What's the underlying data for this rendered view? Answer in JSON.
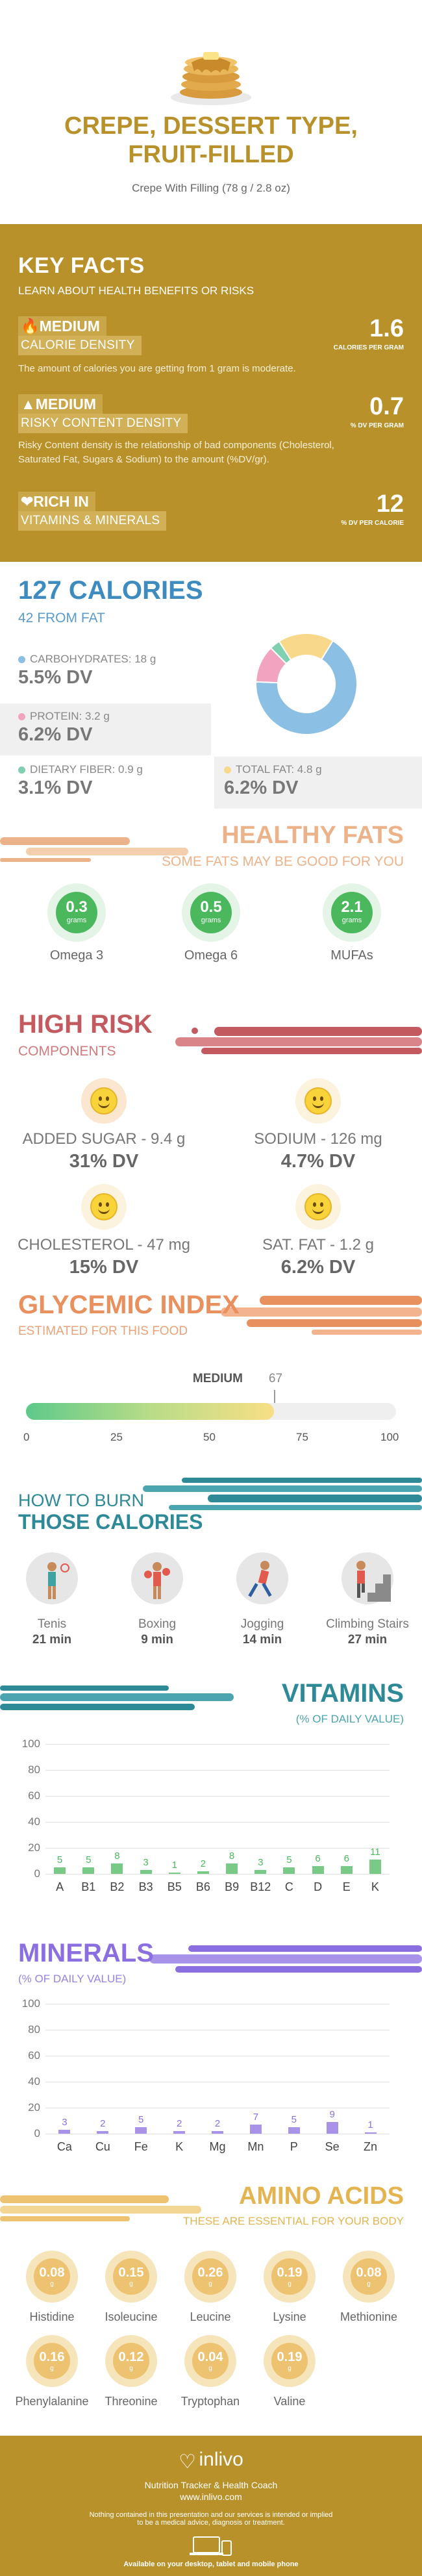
{
  "header": {
    "title_line1": "CREPE, DESSERT TYPE,",
    "title_line2": "FRUIT-FILLED",
    "subtitle": "Crepe With Filling (78 g / 2.8 oz)"
  },
  "key_facts": {
    "title": "KEY FACTS",
    "subtitle": "LEARN ABOUT HEALTH BENEFITS OR RISKS",
    "items": [
      {
        "level": "MEDIUM",
        "label": "CALORIE DENSITY",
        "value": "1.6",
        "unit": "CALORIES PER GRAM",
        "description": "The amount of calories you are getting from 1 gram is moderate.",
        "icon": "flame-icon"
      },
      {
        "level": "MEDIUM",
        "label": "RISKY CONTENT DENSITY",
        "value": "0.7",
        "unit": "% DV PER GRAM",
        "description": "Risky Content density is the relationship of bad components (Cholesterol, Saturated Fat, Sugars & Sodium) to the amount (%DV/gr).",
        "icon": "warning-icon"
      },
      {
        "level": "RICH  IN",
        "label": "VITAMINS & MINERALS",
        "value": "12",
        "unit": "% DV PER CALORIE",
        "icon": "heart-icon"
      }
    ]
  },
  "calories": {
    "title": "127 CALORIES",
    "subtitle": "42 FROM FAT",
    "macros": [
      {
        "name": "CARBOHYDRATES: 18 g",
        "dv": "5.5% DV",
        "color": "#8bbfe3"
      },
      {
        "name": "PROTEIN: 3.2 g",
        "dv": "6.2% DV",
        "color": "#f2a3c0"
      },
      {
        "name": "DIETARY FIBER: 0.9 g",
        "dv": "3.1% DV",
        "color": "#7fcfb0"
      },
      {
        "name": "TOTAL FAT: 4.8 g",
        "dv": "6.2% DV",
        "color": "#f8d98b"
      }
    ],
    "donut": [
      {
        "name": "carbohydrates",
        "value": 18,
        "color": "#8bbfe3"
      },
      {
        "name": "protein",
        "value": 3.2,
        "color": "#f2a3c0"
      },
      {
        "name": "fiber",
        "value": 0.9,
        "color": "#7fcfb0"
      },
      {
        "name": "fat",
        "value": 4.8,
        "color": "#f8d98b"
      }
    ]
  },
  "healthy_fats": {
    "title": "HEALTHY FATS",
    "subtitle": "SOME FATS MAY BE GOOD FOR YOU",
    "items": [
      {
        "value": "0.3",
        "unit": "grams",
        "label": "Omega 3"
      },
      {
        "value": "0.5",
        "unit": "grams",
        "label": "Omega 6"
      },
      {
        "value": "2.1",
        "unit": "grams",
        "label": "MUFAs"
      }
    ]
  },
  "high_risk": {
    "title": "HIGH RISK",
    "subtitle": "COMPONENTS",
    "items": [
      {
        "label": "ADDED SUGAR - 9.4 g",
        "dv": "31% DV"
      },
      {
        "label": "SODIUM - 126 mg",
        "dv": "4.7% DV"
      },
      {
        "label": "CHOLESTEROL - 47 mg",
        "dv": "15% DV"
      },
      {
        "label": "SAT. FAT - 1.2 g",
        "dv": "6.2% DV"
      }
    ]
  },
  "glycemic": {
    "title": "GLYCEMIC INDEX",
    "subtitle": "ESTIMATED FOR THIS FOOD",
    "level": "MEDIUM",
    "value": 67,
    "value_label": "67",
    "ticks": [
      "0",
      "25",
      "50",
      "75",
      "100"
    ]
  },
  "burn": {
    "title1": "HOW TO BURN",
    "title2": "THOSE CALORIES",
    "activities": [
      {
        "name": "Tenis",
        "minutes": "21 min",
        "icon": "tennis-icon"
      },
      {
        "name": "Boxing",
        "minutes": "9 min",
        "icon": "boxing-icon"
      },
      {
        "name": "Jogging",
        "minutes": "14 min",
        "icon": "jogging-icon"
      },
      {
        "name": "Climbing Stairs",
        "minutes": "27 min",
        "icon": "stairs-icon"
      }
    ]
  },
  "vitamins": {
    "title": "VITAMINS",
    "subtitle": "(% OF DAILY VALUE)",
    "color": "#4bb85e",
    "chart_data": {
      "type": "bar",
      "categories": [
        "A",
        "B1",
        "B2",
        "B3",
        "B5",
        "B6",
        "B9",
        "B12",
        "C",
        "D",
        "E",
        "K"
      ],
      "values": [
        5,
        5,
        8,
        3,
        1,
        2,
        8,
        3,
        5,
        6,
        6,
        11
      ],
      "ylim": [
        0,
        100
      ],
      "yticks": [
        "0",
        "20",
        "40",
        "60",
        "80",
        "100"
      ]
    }
  },
  "minerals": {
    "title": "MINERALS",
    "subtitle": "(% OF DAILY VALUE)",
    "color": "#8b6fe0",
    "chart_data": {
      "type": "bar",
      "categories": [
        "Ca",
        "Cu",
        "Fe",
        "K",
        "Mg",
        "Mn",
        "P",
        "Se",
        "Zn"
      ],
      "values": [
        3,
        2,
        5,
        2,
        2,
        7,
        5,
        9,
        1
      ],
      "ylim": [
        0,
        100
      ],
      "yticks": [
        "0",
        "20",
        "40",
        "60",
        "80",
        "100"
      ]
    }
  },
  "amino": {
    "title": "AMINO ACIDS",
    "subtitle": "THESE ARE ESSENTIAL FOR YOUR BODY",
    "unit": "g",
    "items": [
      {
        "value": "0.08",
        "label": "Histidine"
      },
      {
        "value": "0.15",
        "label": "Isoleucine"
      },
      {
        "value": "0.26",
        "label": "Leucine"
      },
      {
        "value": "0.19",
        "label": "Lysine"
      },
      {
        "value": "0.08",
        "label": "Methionine"
      },
      {
        "value": "0.16",
        "label": "Phenylalanine"
      },
      {
        "value": "0.12",
        "label": "Threonine"
      },
      {
        "value": "0.04",
        "label": "Tryptophan"
      },
      {
        "value": "0.19",
        "label": "Valine"
      }
    ]
  },
  "footer": {
    "brand": "inlivo",
    "tagline": "Nutrition Tracker & Health Coach",
    "url": "www.inlivo.com",
    "disclaimer1": "Nothing contained in this presentation and our services is intended or implied",
    "disclaimer2": "to be a medical advice, diagnosis or treatment.",
    "available": "Available on your desktop, tablet and mobile phone"
  }
}
